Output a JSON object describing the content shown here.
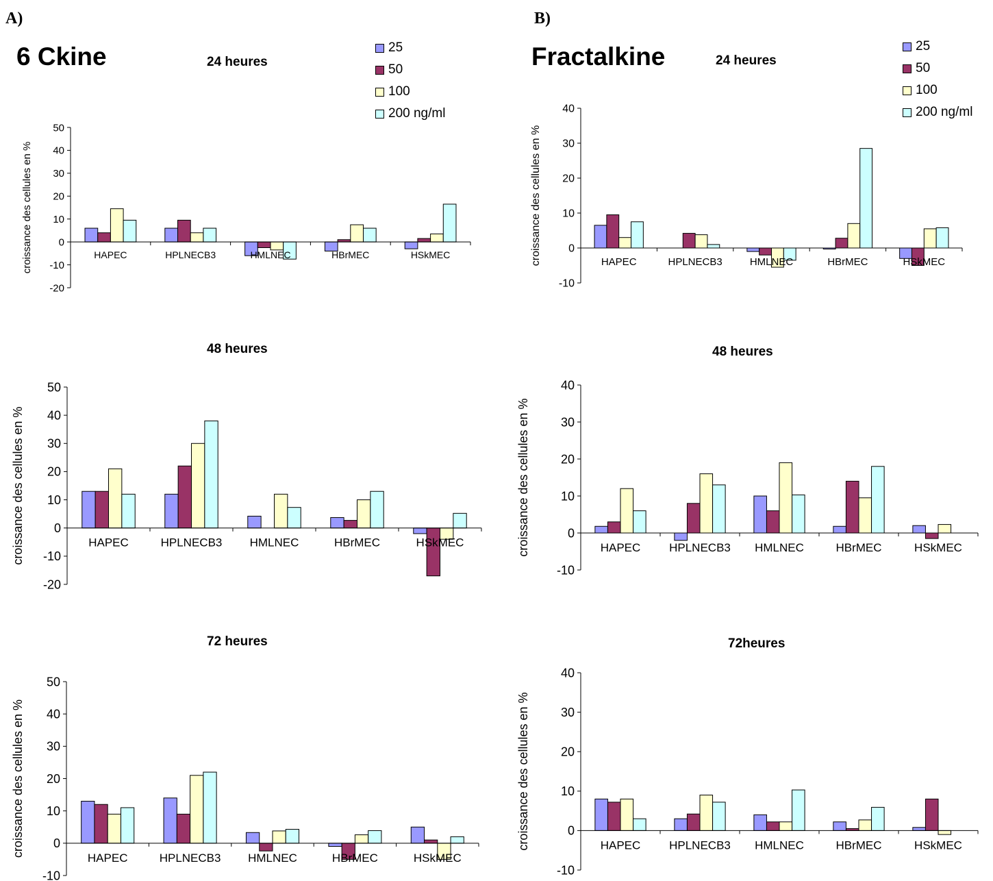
{
  "panel_a": {
    "label": "A)",
    "title": "6 Ckine",
    "legend": [
      "25",
      "50",
      "100",
      "200 ng/ml"
    ]
  },
  "panel_b": {
    "label": "B)",
    "title": "Fractalkine",
    "legend": [
      "25",
      "50",
      "100",
      "200 ng/ml"
    ]
  },
  "colors": [
    "#9999ff",
    "#993366",
    "#ffffcc",
    "#ccffff"
  ],
  "chart_data": [
    {
      "id": "a24",
      "type": "bar",
      "title": "24 heures",
      "ylabel": "croissance des cellules en %",
      "categories": [
        "HAPEC",
        "HPLNECB3",
        "HMLNEC",
        "HBrMEC",
        "HSkMEC"
      ],
      "ylim": [
        -20,
        50
      ],
      "yticks": [
        -20,
        -10,
        0,
        10,
        20,
        30,
        40,
        50
      ],
      "series": [
        {
          "name": "25",
          "values": [
            6,
            6,
            -6,
            -4,
            -3
          ]
        },
        {
          "name": "50",
          "values": [
            4,
            9.5,
            -2.5,
            1,
            1.5
          ]
        },
        {
          "name": "100",
          "values": [
            14.5,
            4,
            -3.5,
            7.5,
            3.5
          ]
        },
        {
          "name": "200 ng/ml",
          "values": [
            9.5,
            6,
            -7.5,
            6,
            16.5
          ]
        }
      ]
    },
    {
      "id": "a48",
      "type": "bar",
      "title": "48 heures",
      "ylabel": "croissance des cellules en %",
      "categories": [
        "HAPEC",
        "HPLNECB3",
        "HMLNEC",
        "HBrMEC",
        "HSkMEC"
      ],
      "ylim": [
        -20,
        50
      ],
      "yticks": [
        -20,
        -10,
        0,
        10,
        20,
        30,
        40,
        50
      ],
      "series": [
        {
          "name": "25",
          "values": [
            13,
            12,
            4.2,
            3.7,
            -2
          ]
        },
        {
          "name": "50",
          "values": [
            13,
            22,
            0,
            2.7,
            -17
          ]
        },
        {
          "name": "100",
          "values": [
            21,
            30,
            12,
            10,
            -4
          ]
        },
        {
          "name": "200 ng/ml",
          "values": [
            12,
            38,
            7.3,
            13,
            5.2
          ]
        }
      ]
    },
    {
      "id": "a72",
      "type": "bar",
      "title": "72 heures",
      "ylabel": "croissance des cellules en %",
      "categories": [
        "HAPEC",
        "HPLNECB3",
        "HMLNEC",
        "HBrMEC",
        "HSkMEC"
      ],
      "ylim": [
        -10,
        50
      ],
      "yticks": [
        -10,
        0,
        10,
        20,
        30,
        40,
        50
      ],
      "series": [
        {
          "name": "25",
          "values": [
            13,
            14,
            3.3,
            -1,
            5
          ]
        },
        {
          "name": "50",
          "values": [
            12,
            9,
            -2.4,
            -5,
            1
          ]
        },
        {
          "name": "100",
          "values": [
            9,
            21,
            3.8,
            2.6,
            -5
          ]
        },
        {
          "name": "200 ng/ml",
          "values": [
            11,
            22,
            4.3,
            3.9,
            2
          ]
        }
      ]
    },
    {
      "id": "b24",
      "type": "bar",
      "title": "24 heures",
      "ylabel": "croissance des cellules en %",
      "categories": [
        "HAPEC",
        "HPLNECB3",
        "HMLNEC",
        "HBrMEC",
        "HSkMEC"
      ],
      "ylim": [
        -10,
        40
      ],
      "yticks": [
        -10,
        0,
        10,
        20,
        30,
        40
      ],
      "series": [
        {
          "name": "25",
          "values": [
            6.5,
            0,
            -1,
            -0.3,
            -3
          ]
        },
        {
          "name": "50",
          "values": [
            9.5,
            4.2,
            -2,
            2.8,
            -5
          ]
        },
        {
          "name": "100",
          "values": [
            3,
            3.8,
            -5.5,
            7,
            5.5
          ]
        },
        {
          "name": "200 ng/ml",
          "values": [
            7.5,
            1,
            -3.5,
            28.5,
            5.8
          ]
        }
      ]
    },
    {
      "id": "b48",
      "type": "bar",
      "title": "48 heures",
      "ylabel": "croissance des cellules en %",
      "categories": [
        "HAPEC",
        "HPLNECB3",
        "HMLNEC",
        "HBrMEC",
        "HSkMEC"
      ],
      "ylim": [
        -10,
        40
      ],
      "yticks": [
        -10,
        0,
        10,
        20,
        30,
        40
      ],
      "series": [
        {
          "name": "25",
          "values": [
            1.8,
            -2,
            10,
            1.8,
            2
          ]
        },
        {
          "name": "50",
          "values": [
            3,
            8,
            6,
            14,
            -1.5
          ]
        },
        {
          "name": "100",
          "values": [
            12,
            16,
            19,
            9.5,
            2.3
          ]
        },
        {
          "name": "200 ng/ml",
          "values": [
            6,
            13,
            10.3,
            18,
            0
          ]
        }
      ]
    },
    {
      "id": "b72",
      "type": "bar",
      "title": "72heures",
      "ylabel": "croissance des cellules en %",
      "categories": [
        "HAPEC",
        "HPLNECB3",
        "HMLNEC",
        "HBrMEC",
        "HSkMEC"
      ],
      "ylim": [
        -10,
        40
      ],
      "yticks": [
        -10,
        0,
        10,
        20,
        30,
        40
      ],
      "series": [
        {
          "name": "25",
          "values": [
            8,
            3,
            4,
            2.2,
            0.8
          ]
        },
        {
          "name": "50",
          "values": [
            7.2,
            4.2,
            2.2,
            0.5,
            8
          ]
        },
        {
          "name": "100",
          "values": [
            8,
            9,
            2.2,
            2.7,
            -1
          ]
        },
        {
          "name": "200 ng/ml",
          "values": [
            3,
            7.2,
            10.3,
            5.9,
            0
          ]
        }
      ]
    }
  ]
}
